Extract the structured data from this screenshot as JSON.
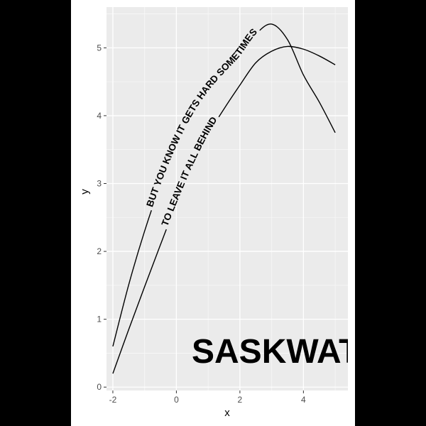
{
  "chart_data": {
    "type": "line",
    "xlabel": "x",
    "ylabel": "y",
    "xlim": [
      -2.2,
      5.4
    ],
    "ylim": [
      -0.05,
      5.6
    ],
    "x_ticks": [
      -2,
      0,
      2,
      4
    ],
    "y_ticks": [
      0,
      1,
      2,
      3,
      4,
      5
    ],
    "grid": true,
    "series": [
      {
        "curve_label": "BUT YOU KNOW IT GETS HARD SOMETIMES",
        "x": [
          -2,
          -1.5,
          -1,
          -0.5,
          0,
          0.5,
          1,
          1.5,
          2,
          2.5,
          3,
          3.5,
          4,
          4.5,
          5
        ],
        "y": [
          0.6,
          1.51,
          2.3,
          2.98,
          3.55,
          4.01,
          4.36,
          4.63,
          4.88,
          5.2,
          5.35,
          5.12,
          4.6,
          4.2,
          3.75
        ]
      },
      {
        "curve_label": "TO LEAVE IT ALL BEHIND",
        "x": [
          -2,
          -1.5,
          -1,
          -0.5,
          0,
          0.5,
          1,
          1.5,
          2,
          2.5,
          3,
          3.5,
          4,
          4.5,
          5
        ],
        "y": [
          0.2,
          0.85,
          1.48,
          2.1,
          2.7,
          3.25,
          3.72,
          4.1,
          4.45,
          4.78,
          4.95,
          5.02,
          4.98,
          4.88,
          4.75
        ]
      }
    ],
    "annotations": [
      "SASKWATCH"
    ]
  }
}
